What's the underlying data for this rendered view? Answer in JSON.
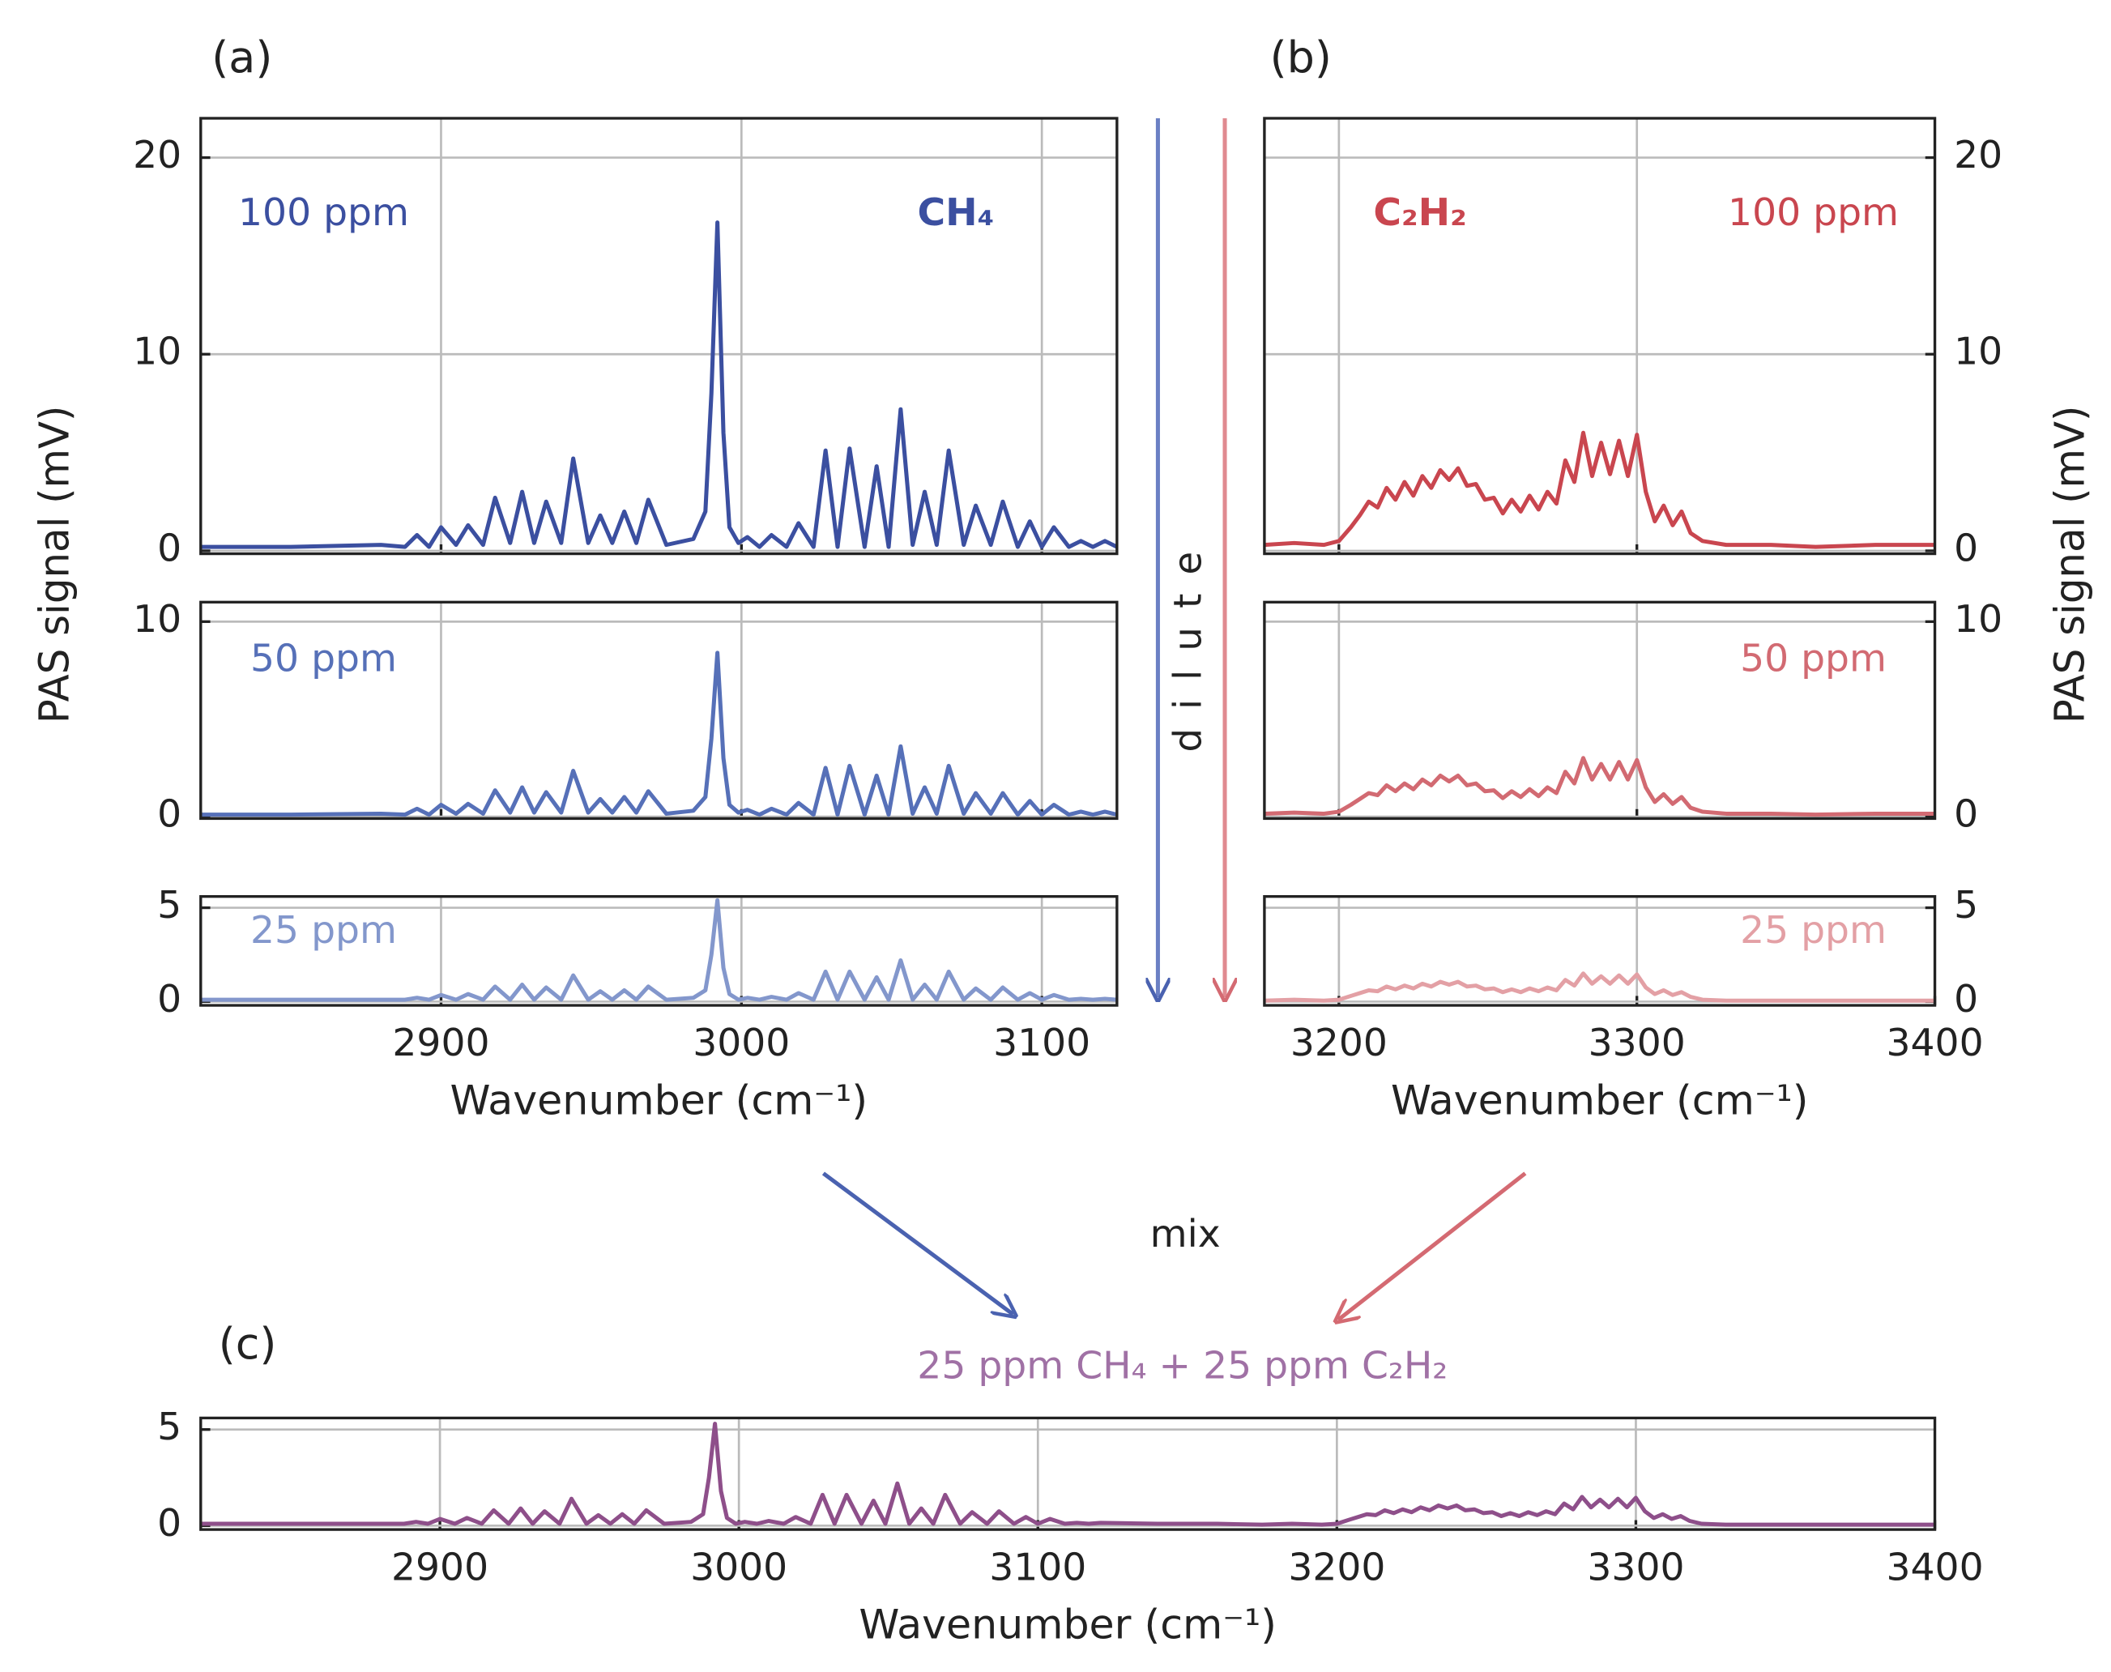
{
  "chart_data": [
    {
      "type": "line",
      "panel_label": "(a)",
      "annotations": [
        "100 ppm",
        "CH₄"
      ],
      "color": "#3b4fa0",
      "xlim": [
        2820,
        3125
      ],
      "xticks": [
        2900,
        3000,
        3100
      ],
      "xtick_labels": false,
      "ylim": [
        -0.15,
        22
      ],
      "yticks": [
        0,
        10,
        20
      ],
      "y_axis_side": "left",
      "grid": true,
      "x": [
        2820,
        2850,
        2880,
        2888,
        2892,
        2896,
        2900,
        2905,
        2909,
        2914,
        2918,
        2923,
        2927,
        2931,
        2935,
        2940,
        2944,
        2949,
        2953,
        2957,
        2961,
        2965,
        2969,
        2975,
        2984,
        2988,
        2990,
        2992,
        2994,
        2996,
        2999,
        3002,
        3006,
        3010,
        3015,
        3019,
        3024,
        3028,
        3032,
        3036,
        3041,
        3045,
        3049,
        3053,
        3057,
        3061,
        3065,
        3069,
        3074,
        3078,
        3083,
        3087,
        3092,
        3096,
        3100,
        3104,
        3109,
        3113,
        3117,
        3121,
        3125
      ],
      "values": [
        0.2,
        0.2,
        0.3,
        0.2,
        0.8,
        0.2,
        1.2,
        0.3,
        1.3,
        0.3,
        2.7,
        0.4,
        3.0,
        0.4,
        2.5,
        0.4,
        4.7,
        0.4,
        1.8,
        0.4,
        2.0,
        0.4,
        2.6,
        0.3,
        0.6,
        2.0,
        8.0,
        16.7,
        6.0,
        1.2,
        0.4,
        0.7,
        0.2,
        0.8,
        0.2,
        1.4,
        0.2,
        5.1,
        0.2,
        5.2,
        0.2,
        4.3,
        0.2,
        7.2,
        0.3,
        3.0,
        0.3,
        5.1,
        0.3,
        2.3,
        0.3,
        2.5,
        0.2,
        1.5,
        0.2,
        1.2,
        0.2,
        0.5,
        0.2,
        0.5,
        0.2
      ]
    },
    {
      "type": "line",
      "annotations": [
        "50 ppm"
      ],
      "ylabel": "PAS signal (mV)",
      "color": "#5670b8",
      "xlim": [
        2820,
        3125
      ],
      "xticks": [
        2900,
        3000,
        3100
      ],
      "xtick_labels": false,
      "ylim": [
        -0.1,
        11
      ],
      "yticks": [
        0,
        10
      ],
      "y_axis_side": "left",
      "grid": true,
      "x": [
        2820,
        2850,
        2880,
        2888,
        2892,
        2896,
        2900,
        2905,
        2909,
        2914,
        2918,
        2923,
        2927,
        2931,
        2935,
        2940,
        2944,
        2949,
        2953,
        2957,
        2961,
        2965,
        2969,
        2975,
        2984,
        2988,
        2990,
        2992,
        2994,
        2996,
        2999,
        3002,
        3006,
        3010,
        3015,
        3019,
        3024,
        3028,
        3032,
        3036,
        3041,
        3045,
        3049,
        3053,
        3057,
        3061,
        3065,
        3069,
        3074,
        3078,
        3083,
        3087,
        3092,
        3096,
        3100,
        3104,
        3109,
        3113,
        3117,
        3121,
        3125
      ],
      "values": [
        0.1,
        0.1,
        0.15,
        0.1,
        0.4,
        0.1,
        0.6,
        0.15,
        0.65,
        0.15,
        1.35,
        0.2,
        1.5,
        0.2,
        1.25,
        0.2,
        2.35,
        0.2,
        0.9,
        0.2,
        1.0,
        0.2,
        1.3,
        0.15,
        0.3,
        1.0,
        4.0,
        8.4,
        3.0,
        0.6,
        0.2,
        0.35,
        0.1,
        0.4,
        0.1,
        0.7,
        0.1,
        2.5,
        0.1,
        2.6,
        0.1,
        2.1,
        0.1,
        3.6,
        0.15,
        1.5,
        0.15,
        2.6,
        0.15,
        1.2,
        0.15,
        1.2,
        0.1,
        0.8,
        0.1,
        0.6,
        0.1,
        0.25,
        0.1,
        0.25,
        0.1
      ]
    },
    {
      "type": "line",
      "annotations": [
        "25 ppm"
      ],
      "xlabel": "Wavenumber (cm⁻¹)",
      "color": "#8397cc",
      "xlim": [
        2820,
        3125
      ],
      "xticks": [
        2900,
        3000,
        3100
      ],
      "xtick_labels": true,
      "ylim": [
        -0.2,
        5.6
      ],
      "yticks": [
        0,
        5
      ],
      "y_axis_side": "left",
      "grid": true,
      "x": [
        2820,
        2850,
        2880,
        2888,
        2892,
        2896,
        2900,
        2905,
        2909,
        2914,
        2918,
        2923,
        2927,
        2931,
        2935,
        2940,
        2944,
        2949,
        2953,
        2957,
        2961,
        2965,
        2969,
        2975,
        2984,
        2988,
        2990,
        2992,
        2994,
        2996,
        2999,
        3002,
        3006,
        3010,
        3015,
        3019,
        3024,
        3028,
        3032,
        3036,
        3041,
        3045,
        3049,
        3053,
        3057,
        3061,
        3065,
        3069,
        3074,
        3078,
        3083,
        3087,
        3092,
        3096,
        3100,
        3104,
        3109,
        3113,
        3117,
        3121,
        3125
      ],
      "values": [
        0.1,
        0.1,
        0.1,
        0.1,
        0.2,
        0.1,
        0.35,
        0.1,
        0.4,
        0.1,
        0.8,
        0.1,
        0.9,
        0.1,
        0.75,
        0.1,
        1.4,
        0.1,
        0.55,
        0.1,
        0.6,
        0.1,
        0.8,
        0.1,
        0.2,
        0.6,
        2.5,
        5.4,
        1.8,
        0.4,
        0.1,
        0.2,
        0.1,
        0.25,
        0.1,
        0.45,
        0.1,
        1.6,
        0.1,
        1.6,
        0.1,
        1.3,
        0.1,
        2.2,
        0.1,
        0.9,
        0.1,
        1.6,
        0.1,
        0.7,
        0.1,
        0.75,
        0.1,
        0.45,
        0.1,
        0.35,
        0.1,
        0.15,
        0.1,
        0.15,
        0.1
      ]
    },
    {
      "type": "line",
      "panel_label": "(b)",
      "annotations": [
        "C₂H₂",
        "100 ppm"
      ],
      "color": "#c9464f",
      "xlim": [
        3175,
        3400
      ],
      "xticks": [
        3200,
        3300
      ],
      "xtick_labels": false,
      "ylim": [
        -0.15,
        22
      ],
      "yticks": [
        0,
        10,
        20
      ],
      "y_axis_side": "right",
      "grid": true,
      "x": [
        3175,
        3185,
        3195,
        3200,
        3204,
        3207,
        3210,
        3213,
        3216,
        3219,
        3222,
        3225,
        3228,
        3231,
        3234,
        3237,
        3240,
        3243,
        3246,
        3249,
        3252,
        3255,
        3258,
        3261,
        3264,
        3267,
        3270,
        3273,
        3276,
        3279,
        3282,
        3285,
        3288,
        3291,
        3294,
        3297,
        3300,
        3303,
        3306,
        3309,
        3312,
        3315,
        3318,
        3322,
        3330,
        3345,
        3360,
        3380,
        3400
      ],
      "values": [
        0.3,
        0.4,
        0.3,
        0.5,
        1.2,
        1.8,
        2.5,
        2.2,
        3.2,
        2.6,
        3.5,
        2.8,
        3.8,
        3.2,
        4.1,
        3.6,
        4.2,
        3.3,
        3.4,
        2.6,
        2.7,
        1.9,
        2.6,
        2.0,
        2.8,
        2.1,
        3.0,
        2.4,
        4.6,
        3.5,
        6.0,
        3.8,
        5.5,
        3.9,
        5.6,
        3.8,
        5.9,
        3.0,
        1.5,
        2.3,
        1.3,
        2.0,
        0.9,
        0.5,
        0.3,
        0.3,
        0.2,
        0.3,
        0.3
      ]
    },
    {
      "type": "line",
      "annotations": [
        "50 ppm"
      ],
      "ylabel": "PAS signal (mV)",
      "color": "#d26a72",
      "xlim": [
        3175,
        3400
      ],
      "xticks": [
        3200,
        3300
      ],
      "xtick_labels": false,
      "ylim": [
        -0.1,
        11
      ],
      "yticks": [
        0,
        10
      ],
      "y_axis_side": "right",
      "grid": true,
      "x": [
        3175,
        3185,
        3195,
        3200,
        3204,
        3207,
        3210,
        3213,
        3216,
        3219,
        3222,
        3225,
        3228,
        3231,
        3234,
        3237,
        3240,
        3243,
        3246,
        3249,
        3252,
        3255,
        3258,
        3261,
        3264,
        3267,
        3270,
        3273,
        3276,
        3279,
        3282,
        3285,
        3288,
        3291,
        3294,
        3297,
        3300,
        3303,
        3306,
        3309,
        3312,
        3315,
        3318,
        3322,
        3330,
        3345,
        3360,
        3380,
        3400
      ],
      "values": [
        0.15,
        0.2,
        0.15,
        0.25,
        0.6,
        0.9,
        1.2,
        1.1,
        1.6,
        1.3,
        1.7,
        1.4,
        1.9,
        1.6,
        2.1,
        1.8,
        2.1,
        1.6,
        1.7,
        1.3,
        1.35,
        0.95,
        1.3,
        1.0,
        1.4,
        1.05,
        1.5,
        1.2,
        2.3,
        1.7,
        3.0,
        1.9,
        2.7,
        1.9,
        2.8,
        1.9,
        2.9,
        1.5,
        0.75,
        1.15,
        0.65,
        1.0,
        0.45,
        0.25,
        0.15,
        0.15,
        0.1,
        0.15,
        0.15
      ]
    },
    {
      "type": "line",
      "annotations": [
        "25 ppm"
      ],
      "xlabel": "Wavenumber (cm⁻¹)",
      "color": "#e3a0a5",
      "xlim": [
        3175,
        3400
      ],
      "xticks": [
        3200,
        3300,
        3400
      ],
      "xtick_labels": true,
      "ylim": [
        -0.2,
        5.6
      ],
      "yticks": [
        0,
        5
      ],
      "y_axis_side": "right",
      "grid": true,
      "x": [
        3175,
        3185,
        3195,
        3200,
        3204,
        3207,
        3210,
        3213,
        3216,
        3219,
        3222,
        3225,
        3228,
        3231,
        3234,
        3237,
        3240,
        3243,
        3246,
        3249,
        3252,
        3255,
        3258,
        3261,
        3264,
        3267,
        3270,
        3273,
        3276,
        3279,
        3282,
        3285,
        3288,
        3291,
        3294,
        3297,
        3300,
        3303,
        3306,
        3309,
        3312,
        3315,
        3318,
        3322,
        3330,
        3345,
        3360,
        3380,
        3400
      ],
      "values": [
        0.05,
        0.1,
        0.05,
        0.1,
        0.3,
        0.45,
        0.6,
        0.55,
        0.8,
        0.65,
        0.85,
        0.7,
        0.95,
        0.8,
        1.05,
        0.9,
        1.05,
        0.8,
        0.85,
        0.65,
        0.7,
        0.5,
        0.65,
        0.5,
        0.7,
        0.55,
        0.75,
        0.6,
        1.15,
        0.85,
        1.5,
        0.95,
        1.35,
        0.95,
        1.4,
        0.95,
        1.45,
        0.75,
        0.4,
        0.6,
        0.35,
        0.5,
        0.25,
        0.1,
        0.05,
        0.05,
        0.05,
        0.05,
        0.05
      ]
    },
    {
      "type": "line",
      "panel_label": "(c)",
      "xlabel": "Wavenumber (cm⁻¹)",
      "color": "#8e4f8a",
      "xlim": [
        2820,
        3400
      ],
      "xticks": [
        2900,
        3000,
        3100,
        3200,
        3300,
        3400
      ],
      "xtick_labels": true,
      "ylim": [
        -0.2,
        5.6
      ],
      "yticks": [
        0,
        5
      ],
      "y_axis_side": "left",
      "grid": true,
      "x": [
        2820,
        2850,
        2880,
        2888,
        2892,
        2896,
        2900,
        2905,
        2909,
        2914,
        2918,
        2923,
        2927,
        2931,
        2935,
        2940,
        2944,
        2949,
        2953,
        2957,
        2961,
        2965,
        2969,
        2975,
        2984,
        2988,
        2990,
        2992,
        2994,
        2996,
        2999,
        3002,
        3006,
        3010,
        3015,
        3019,
        3024,
        3028,
        3032,
        3036,
        3041,
        3045,
        3049,
        3053,
        3057,
        3061,
        3065,
        3069,
        3074,
        3078,
        3083,
        3087,
        3092,
        3096,
        3100,
        3104,
        3109,
        3113,
        3117,
        3121,
        3140,
        3160,
        3175,
        3185,
        3195,
        3200,
        3204,
        3207,
        3210,
        3213,
        3216,
        3219,
        3222,
        3225,
        3228,
        3231,
        3234,
        3237,
        3240,
        3243,
        3246,
        3249,
        3252,
        3255,
        3258,
        3261,
        3264,
        3267,
        3270,
        3273,
        3276,
        3279,
        3282,
        3285,
        3288,
        3291,
        3294,
        3297,
        3300,
        3303,
        3306,
        3309,
        3312,
        3315,
        3318,
        3322,
        3330,
        3345,
        3360,
        3380,
        3400
      ],
      "values": [
        0.1,
        0.1,
        0.1,
        0.1,
        0.2,
        0.1,
        0.35,
        0.1,
        0.4,
        0.1,
        0.8,
        0.1,
        0.9,
        0.1,
        0.75,
        0.1,
        1.4,
        0.1,
        0.55,
        0.1,
        0.6,
        0.1,
        0.8,
        0.1,
        0.2,
        0.6,
        2.5,
        5.3,
        1.8,
        0.4,
        0.1,
        0.2,
        0.1,
        0.25,
        0.1,
        0.45,
        0.1,
        1.6,
        0.1,
        1.6,
        0.1,
        1.3,
        0.1,
        2.2,
        0.1,
        0.9,
        0.1,
        1.6,
        0.1,
        0.7,
        0.1,
        0.75,
        0.1,
        0.45,
        0.1,
        0.35,
        0.1,
        0.15,
        0.1,
        0.15,
        0.1,
        0.1,
        0.05,
        0.1,
        0.05,
        0.1,
        0.3,
        0.45,
        0.6,
        0.55,
        0.8,
        0.65,
        0.85,
        0.7,
        0.95,
        0.8,
        1.05,
        0.9,
        1.05,
        0.8,
        0.85,
        0.65,
        0.7,
        0.5,
        0.65,
        0.5,
        0.7,
        0.55,
        0.75,
        0.6,
        1.15,
        0.85,
        1.5,
        0.95,
        1.35,
        0.95,
        1.4,
        0.95,
        1.45,
        0.75,
        0.4,
        0.6,
        0.35,
        0.5,
        0.25,
        0.1,
        0.05,
        0.05,
        0.05,
        0.05,
        0.05
      ]
    }
  ],
  "figure": {
    "dilute": "dilute",
    "mix": "mix",
    "mixture": "25 ppm CH₄ + 25 ppm C₂H₂"
  }
}
